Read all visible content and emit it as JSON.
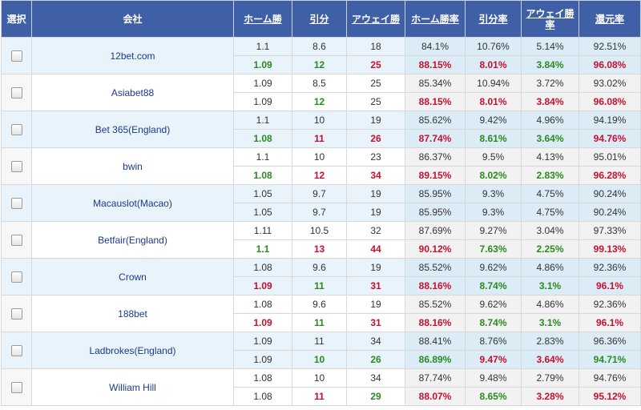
{
  "headers": [
    "選択",
    "会社",
    "ホーム勝",
    "引分",
    "アウェイ勝",
    "ホーム勝率",
    "引分率",
    "アウェイ勝率",
    "還元率"
  ],
  "rows": [
    {
      "company": "12bet.com",
      "shade": true,
      "open": [
        "1.1",
        "8.6",
        "18",
        "84.1%",
        "10.76%",
        "5.14%",
        "92.51%"
      ],
      "live": [
        "1.09",
        "12",
        "25",
        "88.15%",
        "8.01%",
        "3.84%",
        "96.08%"
      ],
      "style": [
        "down",
        "down",
        "up",
        "up",
        "up",
        "down",
        "up"
      ]
    },
    {
      "company": "Asiabet88",
      "shade": false,
      "open": [
        "1.09",
        "8.5",
        "25",
        "85.34%",
        "10.94%",
        "3.72%",
        "93.02%"
      ],
      "live": [
        "1.09",
        "12",
        "25",
        "88.15%",
        "8.01%",
        "3.84%",
        "96.08%"
      ],
      "style": [
        "",
        "down",
        "",
        "up",
        "up",
        "up",
        "up"
      ]
    },
    {
      "company": "Bet 365(England)",
      "shade": true,
      "open": [
        "1.1",
        "10",
        "19",
        "85.62%",
        "9.42%",
        "4.96%",
        "94.19%"
      ],
      "live": [
        "1.08",
        "11",
        "26",
        "87.74%",
        "8.61%",
        "3.64%",
        "94.76%"
      ],
      "style": [
        "down",
        "up",
        "up",
        "up",
        "down",
        "down",
        "up"
      ]
    },
    {
      "company": "bwin",
      "shade": false,
      "open": [
        "1.1",
        "10",
        "23",
        "86.37%",
        "9.5%",
        "4.13%",
        "95.01%"
      ],
      "live": [
        "1.08",
        "12",
        "34",
        "89.15%",
        "8.02%",
        "2.83%",
        "96.28%"
      ],
      "style": [
        "down",
        "up",
        "up",
        "up",
        "down",
        "down",
        "up"
      ]
    },
    {
      "company": "Macauslot(Macao)",
      "shade": true,
      "open": [
        "1.05",
        "9.7",
        "19",
        "85.95%",
        "9.3%",
        "4.75%",
        "90.24%"
      ],
      "live": [
        "1.05",
        "9.7",
        "19",
        "85.95%",
        "9.3%",
        "4.75%",
        "90.24%"
      ],
      "style": [
        "",
        "",
        "",
        "",
        "",
        "",
        ""
      ]
    },
    {
      "company": "Betfair(England)",
      "shade": false,
      "open": [
        "1.11",
        "10.5",
        "32",
        "87.69%",
        "9.27%",
        "3.04%",
        "97.33%"
      ],
      "live": [
        "1.1",
        "13",
        "44",
        "90.12%",
        "7.63%",
        "2.25%",
        "99.13%"
      ],
      "style": [
        "down",
        "up",
        "up",
        "up",
        "down",
        "down",
        "up"
      ]
    },
    {
      "company": "Crown",
      "shade": true,
      "open": [
        "1.08",
        "9.6",
        "19",
        "85.52%",
        "9.62%",
        "4.86%",
        "92.36%"
      ],
      "live": [
        "1.09",
        "11",
        "31",
        "88.16%",
        "8.74%",
        "3.1%",
        "96.1%"
      ],
      "style": [
        "up",
        "down",
        "up",
        "up",
        "down",
        "down",
        "up"
      ]
    },
    {
      "company": "188bet",
      "shade": false,
      "open": [
        "1.08",
        "9.6",
        "19",
        "85.52%",
        "9.62%",
        "4.86%",
        "92.36%"
      ],
      "live": [
        "1.09",
        "11",
        "31",
        "88.16%",
        "8.74%",
        "3.1%",
        "96.1%"
      ],
      "style": [
        "up",
        "down",
        "up",
        "up",
        "down",
        "down",
        "up"
      ]
    },
    {
      "company": "Ladbrokes(England)",
      "shade": true,
      "open": [
        "1.09",
        "11",
        "34",
        "88.41%",
        "8.76%",
        "2.83%",
        "96.36%"
      ],
      "live": [
        "1.09",
        "10",
        "26",
        "86.89%",
        "9.47%",
        "3.64%",
        "94.71%"
      ],
      "style": [
        "",
        "down",
        "down",
        "down",
        "up",
        "up",
        "down"
      ]
    },
    {
      "company": "William Hill",
      "shade": false,
      "open": [
        "1.08",
        "10",
        "34",
        "87.74%",
        "9.48%",
        "2.79%",
        "94.76%"
      ],
      "live": [
        "1.08",
        "11",
        "29",
        "88.07%",
        "8.65%",
        "3.28%",
        "95.12%"
      ],
      "style": [
        "",
        "up",
        "down",
        "up",
        "down",
        "up",
        "up"
      ]
    }
  ]
}
